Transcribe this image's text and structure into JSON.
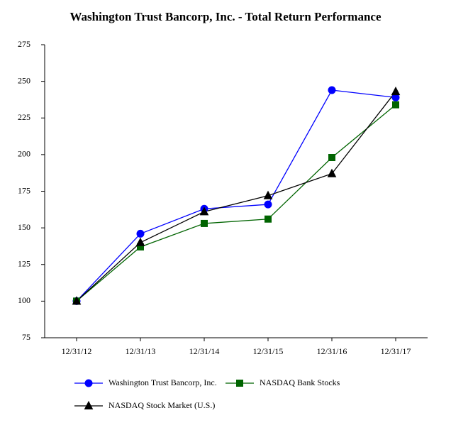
{
  "chart_data": {
    "type": "line",
    "title": "Washington Trust Bancorp, Inc. - Total Return Performance",
    "categories": [
      "12/31/12",
      "12/31/13",
      "12/31/14",
      "12/31/15",
      "12/31/16",
      "12/31/17"
    ],
    "series": [
      {
        "name": "Washington Trust Bancorp, Inc.",
        "color": "#0000ff",
        "marker": "circle",
        "values": [
          100,
          146,
          163,
          166,
          244,
          239
        ]
      },
      {
        "name": "NASDAQ Bank Stocks",
        "color": "#006400",
        "marker": "square",
        "values": [
          100,
          137,
          153,
          156,
          198,
          234
        ]
      },
      {
        "name": "NASDAQ Stock Market (U.S.)",
        "color": "#000000",
        "marker": "triangle",
        "values": [
          100,
          140,
          161,
          172,
          187,
          243
        ]
      }
    ],
    "ylim": [
      75,
      275
    ],
    "yticks": [
      75,
      100,
      125,
      150,
      175,
      200,
      225,
      250,
      275
    ],
    "grid": false
  }
}
